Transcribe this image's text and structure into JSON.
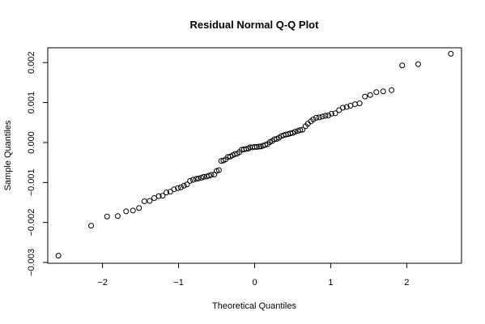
{
  "chart_data": {
    "type": "scatter",
    "title": "Residual Normal Q-Q Plot",
    "xlabel": "Theoretical Quantiles",
    "ylabel": "Sample Quantiles",
    "xlim": [
      -2.72,
      2.72
    ],
    "ylim": [
      -0.00302,
      0.00237
    ],
    "xticks": [
      -2,
      -1,
      0,
      1,
      2
    ],
    "xtick_labels": [
      "−2",
      "−1",
      "0",
      "1",
      "2"
    ],
    "yticks": [
      -0.003,
      -0.002,
      -0.001,
      0.0,
      0.001,
      0.002
    ],
    "ytick_labels": [
      "−0.003",
      "−0.002",
      "−0.001",
      "0.000",
      "0.001",
      "0.002"
    ],
    "grid": false,
    "marker": "open-circle",
    "series": [
      {
        "points": [
          [
            -2.58,
            -0.00283
          ],
          [
            -2.15,
            -0.00208
          ],
          [
            -1.94,
            -0.00185
          ],
          [
            -1.8,
            -0.00184
          ],
          [
            -1.69,
            -0.00172
          ],
          [
            -1.6,
            -0.0017
          ],
          [
            -1.52,
            -0.00164
          ],
          [
            -1.45,
            -0.00147
          ],
          [
            -1.38,
            -0.00146
          ],
          [
            -1.32,
            -0.00139
          ],
          [
            -1.26,
            -0.00134
          ],
          [
            -1.21,
            -0.00133
          ],
          [
            -1.16,
            -0.00125
          ],
          [
            -1.11,
            -0.00123
          ],
          [
            -1.06,
            -0.00117
          ],
          [
            -1.01,
            -0.00114
          ],
          [
            -0.97,
            -0.00112
          ],
          [
            -0.93,
            -0.00108
          ],
          [
            -0.89,
            -0.00105
          ],
          [
            -0.85,
            -0.00096
          ],
          [
            -0.81,
            -0.00093
          ],
          [
            -0.77,
            -0.00091
          ],
          [
            -0.74,
            -0.0009
          ],
          [
            -0.7,
            -0.00088
          ],
          [
            -0.67,
            -0.00086
          ],
          [
            -0.63,
            -0.00085
          ],
          [
            -0.6,
            -0.00083
          ],
          [
            -0.57,
            -0.00081
          ],
          [
            -0.53,
            -0.0008
          ],
          [
            -0.5,
            -0.00071
          ],
          [
            -0.47,
            -0.00069
          ],
          [
            -0.44,
            -0.00046
          ],
          [
            -0.41,
            -0.00045
          ],
          [
            -0.38,
            -0.00042
          ],
          [
            -0.35,
            -0.00036
          ],
          [
            -0.32,
            -0.00035
          ],
          [
            -0.29,
            -0.00032
          ],
          [
            -0.26,
            -0.00029
          ],
          [
            -0.23,
            -0.00028
          ],
          [
            -0.2,
            -0.00024
          ],
          [
            -0.17,
            -0.00018
          ],
          [
            -0.14,
            -0.00017
          ],
          [
            -0.11,
            -0.00016
          ],
          [
            -0.08,
            -0.00015
          ],
          [
            -0.06,
            -0.00012
          ],
          [
            -0.03,
            -0.00012
          ],
          [
            0.0,
            -0.00011
          ],
          [
            0.03,
            -0.00011
          ],
          [
            0.06,
            -0.0001
          ],
          [
            0.08,
            -0.0001
          ],
          [
            0.11,
            -8e-05
          ],
          [
            0.14,
            -6e-05
          ],
          [
            0.17,
            -4e-05
          ],
          [
            0.2,
            1e-05
          ],
          [
            0.23,
            4e-05
          ],
          [
            0.26,
            8e-05
          ],
          [
            0.29,
            9e-05
          ],
          [
            0.32,
            0.00012
          ],
          [
            0.35,
            0.00016
          ],
          [
            0.38,
            0.00018
          ],
          [
            0.41,
            0.0002
          ],
          [
            0.44,
            0.00021
          ],
          [
            0.47,
            0.00023
          ],
          [
            0.5,
            0.00024
          ],
          [
            0.53,
            0.00027
          ],
          [
            0.57,
            0.00029
          ],
          [
            0.6,
            0.00031
          ],
          [
            0.63,
            0.00032
          ],
          [
            0.67,
            0.00041
          ],
          [
            0.7,
            0.00047
          ],
          [
            0.74,
            0.00053
          ],
          [
            0.77,
            0.00058
          ],
          [
            0.81,
            0.00062
          ],
          [
            0.85,
            0.00063
          ],
          [
            0.89,
            0.00065
          ],
          [
            0.93,
            0.00067
          ],
          [
            0.97,
            0.00068
          ],
          [
            1.01,
            0.00072
          ],
          [
            1.06,
            0.00073
          ],
          [
            1.11,
            0.00081
          ],
          [
            1.16,
            0.00087
          ],
          [
            1.21,
            0.00089
          ],
          [
            1.26,
            0.00092
          ],
          [
            1.32,
            0.00096
          ],
          [
            1.38,
            0.00098
          ],
          [
            1.45,
            0.00115
          ],
          [
            1.52,
            0.00119
          ],
          [
            1.6,
            0.00126
          ],
          [
            1.69,
            0.00128
          ],
          [
            1.8,
            0.00131
          ],
          [
            1.94,
            0.00193
          ],
          [
            2.15,
            0.00196
          ],
          [
            2.58,
            0.00222
          ]
        ]
      }
    ]
  }
}
